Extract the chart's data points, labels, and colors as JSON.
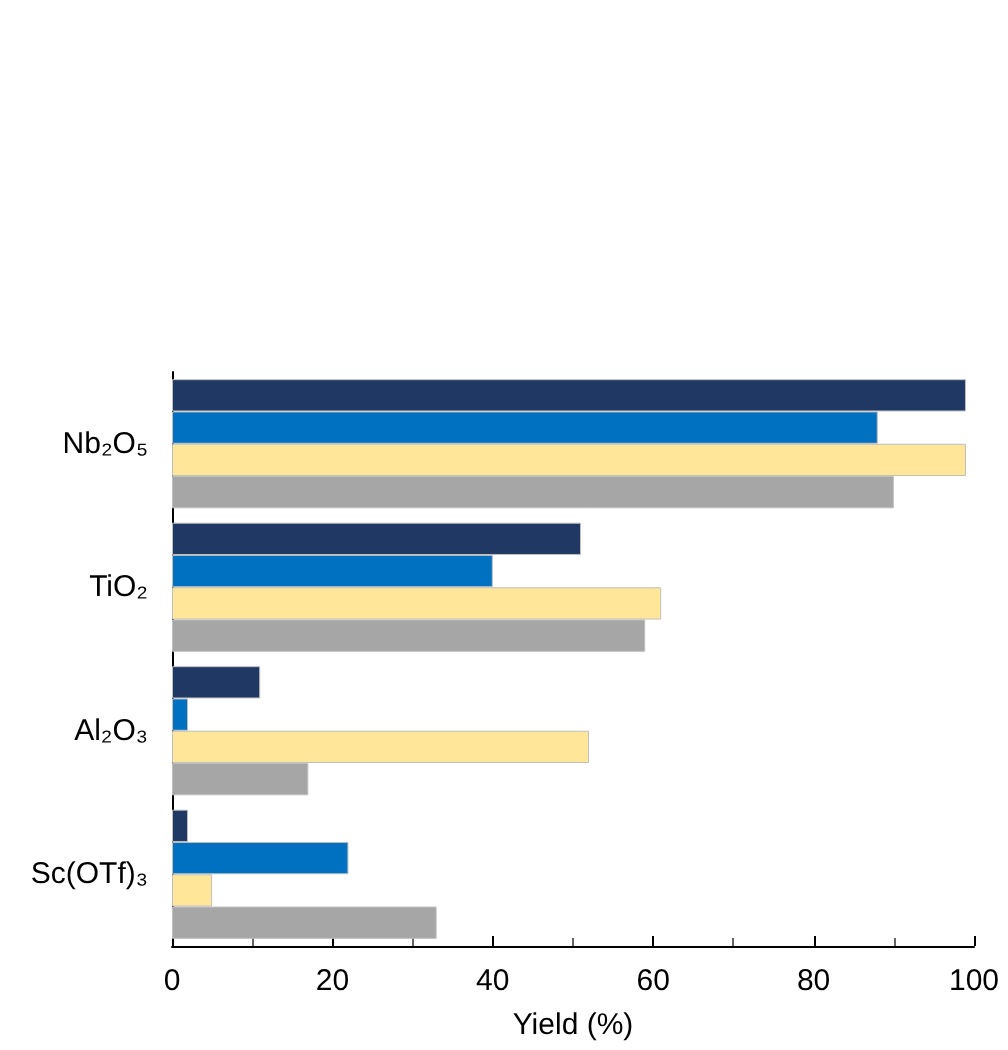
{
  "chart_data": {
    "type": "bar",
    "orientation": "horizontal",
    "xlabel": "Yield (%)",
    "categories": [
      "Nb₂O₅",
      "TiO₂",
      "Al₂O₃",
      "Sc(OTf)₃"
    ],
    "series": [
      {
        "color": "#1f3864",
        "values": [
          99,
          51,
          11,
          2
        ]
      },
      {
        "color": "#0070c0",
        "values": [
          88,
          40,
          2,
          22
        ]
      },
      {
        "color": "#ffe699",
        "values": [
          99,
          61,
          52,
          5
        ]
      },
      {
        "color": "#a6a6a6",
        "values": [
          90,
          59,
          17,
          33
        ]
      }
    ],
    "xlim": [
      0,
      100
    ],
    "xticks": [
      0,
      20,
      40,
      60,
      80,
      100
    ]
  }
}
